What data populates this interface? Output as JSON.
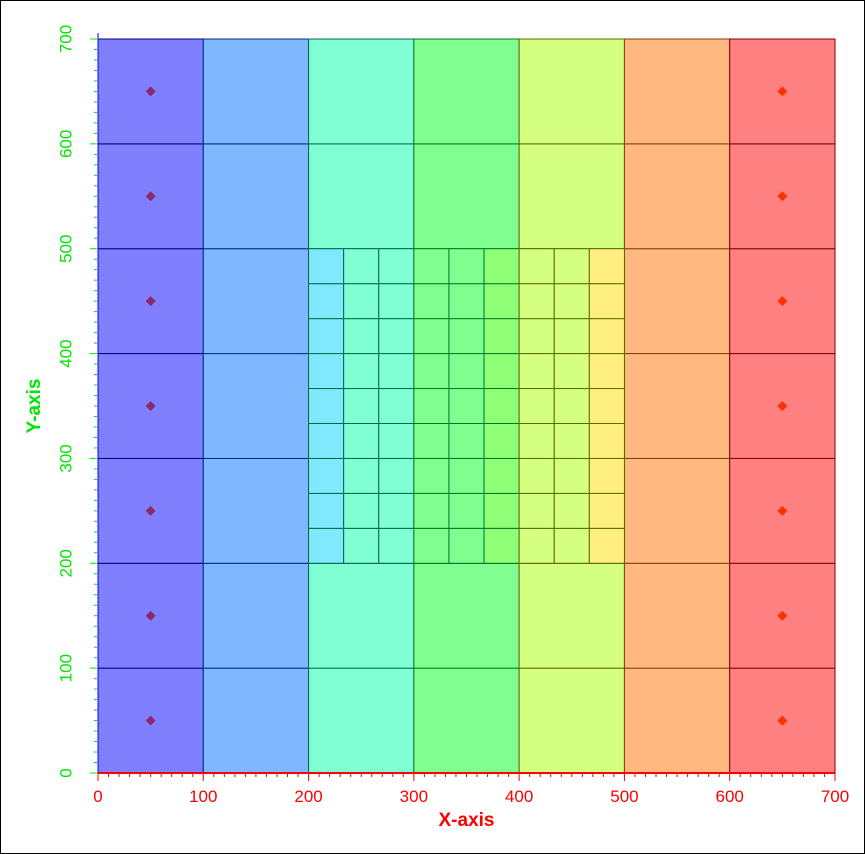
{
  "chart_data": {
    "type": "heatmap",
    "title": "",
    "xlabel": "X-axis",
    "ylabel": "Y-axis",
    "xlim": [
      0,
      700
    ],
    "ylim": [
      0,
      700
    ],
    "x_ticks": [
      "0",
      "100",
      "200",
      "300",
      "400",
      "500",
      "600",
      "700"
    ],
    "y_ticks": [
      "0",
      "100",
      "200",
      "300",
      "400",
      "500",
      "600",
      "700"
    ],
    "grid": false,
    "colors": {
      "x_axis": "#ff0000",
      "y_axis": "#00e600",
      "boundary": "#0000ff"
    },
    "coarse_grid": {
      "x_edges": [
        0,
        100,
        200,
        300,
        400,
        500,
        600,
        700
      ],
      "y_edges": [
        0,
        100,
        200,
        300,
        400,
        500,
        600,
        700
      ],
      "column_fill": [
        "#8080ff",
        "#80b8ff",
        "#80ffd4",
        "#80ff90",
        "#d4ff80",
        "#ffb880",
        "#ff8080"
      ],
      "column_line": [
        "#000080",
        "#002a80",
        "#006a4a",
        "#007a20",
        "#5a6a00",
        "#804000",
        "#800000"
      ]
    },
    "refined_grid": {
      "x_range": [
        200,
        500
      ],
      "y_range": [
        200,
        500
      ],
      "nx": 9,
      "ny": 9,
      "column_fill": [
        "#80e8ff",
        "#80ffd4",
        "#80ffd4",
        "#80ff90",
        "#80ff90",
        "#90ff78",
        "#d4ff80",
        "#d4ff80",
        "#ffee80"
      ]
    },
    "left_markers": {
      "x": [
        50,
        50,
        50,
        50,
        50,
        50,
        50
      ],
      "y": [
        50,
        150,
        250,
        350,
        450,
        550,
        650
      ],
      "color": "#8b2a6a"
    },
    "right_markers": {
      "x": [
        650,
        650,
        650,
        650,
        650,
        650,
        650
      ],
      "y": [
        50,
        150,
        250,
        350,
        450,
        550,
        650
      ],
      "color": "#ff3000"
    }
  }
}
